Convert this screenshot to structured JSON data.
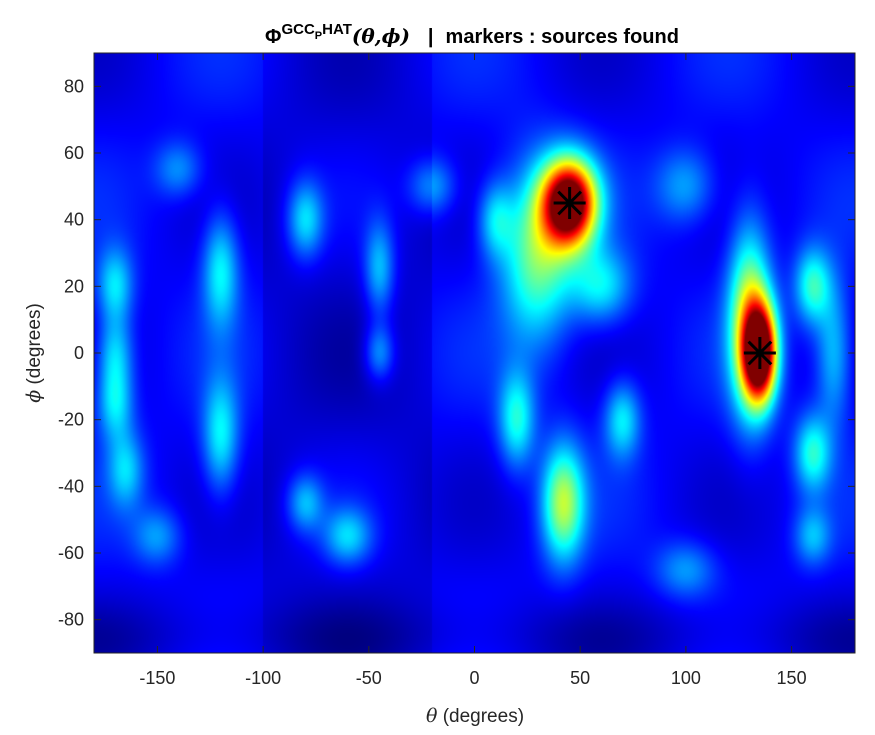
{
  "chart_data": {
    "type": "heatmap",
    "title": {
      "symbol": "Φ",
      "superscript": "GCC",
      "sub_subscript": "P",
      "superscript_tail": "HAT",
      "args": "(θ,ϕ)",
      "separator": "|",
      "suffix": "markers : sources found"
    },
    "xlabel": {
      "symbol": "θ",
      "text": " (degrees)"
    },
    "ylabel": {
      "symbol": "ϕ",
      "text": " (degrees)"
    },
    "xlim": [
      -180,
      180
    ],
    "ylim": [
      -90,
      90
    ],
    "xticks": [
      -150,
      -100,
      -50,
      0,
      50,
      100,
      150
    ],
    "yticks": [
      80,
      60,
      40,
      20,
      0,
      -20,
      -40,
      -60,
      -80
    ],
    "colormap": "jet",
    "background_level": 0.12,
    "peaks": [
      {
        "theta": 45,
        "phi": 45,
        "value": 1.0,
        "sx": 9,
        "sy": 9
      },
      {
        "theta": 135,
        "phi": 0,
        "value": 1.0,
        "sx": 5.5,
        "sy": 10
      },
      {
        "theta": 130,
        "phi": 10,
        "value": 0.45,
        "sx": 7,
        "sy": 20
      },
      {
        "theta": 30,
        "phi": 30,
        "value": 0.38,
        "sx": 12,
        "sy": 18
      },
      {
        "theta": 42,
        "phi": -45,
        "value": 0.42,
        "sx": 7,
        "sy": 12
      },
      {
        "theta": 20,
        "phi": -20,
        "value": 0.28,
        "sx": 6,
        "sy": 10
      },
      {
        "theta": 60,
        "phi": 20,
        "value": 0.25,
        "sx": 10,
        "sy": 8
      },
      {
        "theta": 70,
        "phi": -20,
        "value": 0.25,
        "sx": 6,
        "sy": 8
      },
      {
        "theta": 160,
        "phi": 20,
        "value": 0.3,
        "sx": 6,
        "sy": 8
      },
      {
        "theta": 160,
        "phi": -30,
        "value": 0.28,
        "sx": 6,
        "sy": 8
      },
      {
        "theta": 170,
        "phi": 0,
        "value": 0.22,
        "sx": 6,
        "sy": 15
      },
      {
        "theta": -170,
        "phi": 20,
        "value": 0.24,
        "sx": 6,
        "sy": 8
      },
      {
        "theta": -170,
        "phi": 0,
        "value": 0.22,
        "sx": 6,
        "sy": 8
      },
      {
        "theta": -170,
        "phi": -15,
        "value": 0.24,
        "sx": 6,
        "sy": 8
      },
      {
        "theta": -165,
        "phi": -35,
        "value": 0.2,
        "sx": 6,
        "sy": 8
      },
      {
        "theta": -120,
        "phi": 25,
        "value": 0.26,
        "sx": 6,
        "sy": 12
      },
      {
        "theta": -120,
        "phi": -25,
        "value": 0.26,
        "sx": 6,
        "sy": 12
      },
      {
        "theta": -80,
        "phi": 40,
        "value": 0.24,
        "sx": 6,
        "sy": 8
      },
      {
        "theta": -80,
        "phi": -45,
        "value": 0.2,
        "sx": 6,
        "sy": 6
      },
      {
        "theta": -60,
        "phi": -55,
        "value": 0.22,
        "sx": 8,
        "sy": 6
      },
      {
        "theta": -45,
        "phi": 25,
        "value": 0.22,
        "sx": 5,
        "sy": 10
      },
      {
        "theta": -45,
        "phi": 0,
        "value": 0.2,
        "sx": 5,
        "sy": 6
      },
      {
        "theta": -20,
        "phi": 50,
        "value": 0.18,
        "sx": 8,
        "sy": 6
      },
      {
        "theta": 10,
        "phi": 40,
        "value": 0.22,
        "sx": 6,
        "sy": 8
      },
      {
        "theta": 100,
        "phi": 50,
        "value": 0.18,
        "sx": 10,
        "sy": 8
      },
      {
        "theta": 160,
        "phi": -55,
        "value": 0.18,
        "sx": 6,
        "sy": 6
      },
      {
        "theta": 100,
        "phi": -65,
        "value": 0.16,
        "sx": 10,
        "sy": 6
      },
      {
        "theta": -140,
        "phi": 55,
        "value": 0.16,
        "sx": 8,
        "sy": 6
      },
      {
        "theta": -150,
        "phi": -55,
        "value": 0.16,
        "sx": 8,
        "sy": 6
      }
    ],
    "sources_found": [
      {
        "theta": 45,
        "phi": 45
      },
      {
        "theta": 135,
        "phi": 0
      }
    ],
    "marker": "asterisk",
    "marker_color": "#000000"
  }
}
